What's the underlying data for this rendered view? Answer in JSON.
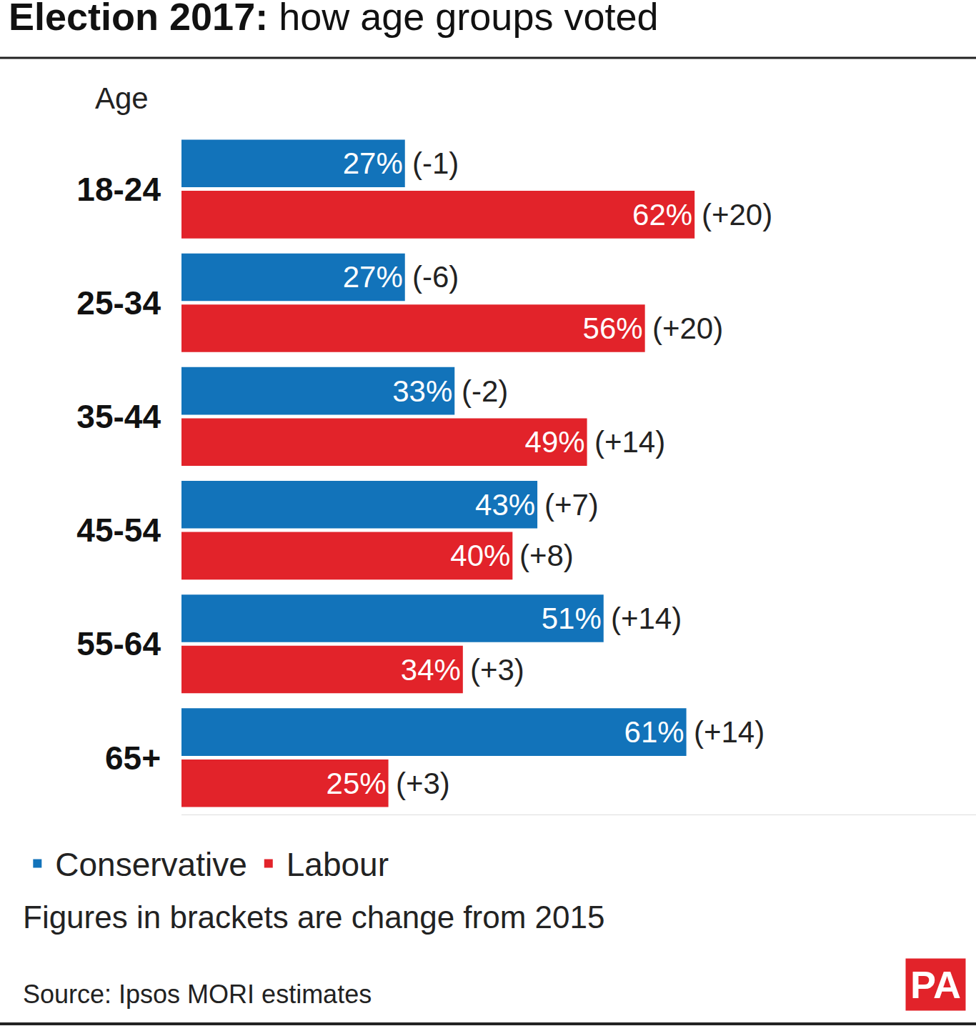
{
  "chart_data": {
    "type": "bar",
    "orientation": "horizontal",
    "title": "Election 2017: how age groups voted",
    "y_label": "Age",
    "categories": [
      "18-24",
      "25-34",
      "35-44",
      "45-54",
      "55-64",
      "65+"
    ],
    "series": [
      {
        "name": "Conservative",
        "color": "#1273ba",
        "values": [
          27,
          27,
          33,
          43,
          51,
          61
        ],
        "value_labels": [
          "27%",
          "27%",
          "33%",
          "43%",
          "51%",
          "61%"
        ],
        "change_labels": [
          "(-1)",
          "(-6)",
          "(-2)",
          "(+7)",
          "(+14)",
          "(+14)"
        ]
      },
      {
        "name": "Labour",
        "color": "#e2232a",
        "values": [
          62,
          56,
          49,
          40,
          34,
          25
        ],
        "value_labels": [
          "62%",
          "56%",
          "49%",
          "40%",
          "34%",
          "25%"
        ],
        "change_labels": [
          "(+20)",
          "(+20)",
          "(+14)",
          "(+8)",
          "(+3)",
          "(+3)"
        ]
      }
    ],
    "xlim": [
      0,
      96
    ],
    "tick_labels": "y",
    "grid": false,
    "data_labels": true,
    "legend": "bottom left",
    "note": "Figures in brackets are change from 2015",
    "source": "Source: Ipsos MORI estimates",
    "logo": "PA"
  }
}
